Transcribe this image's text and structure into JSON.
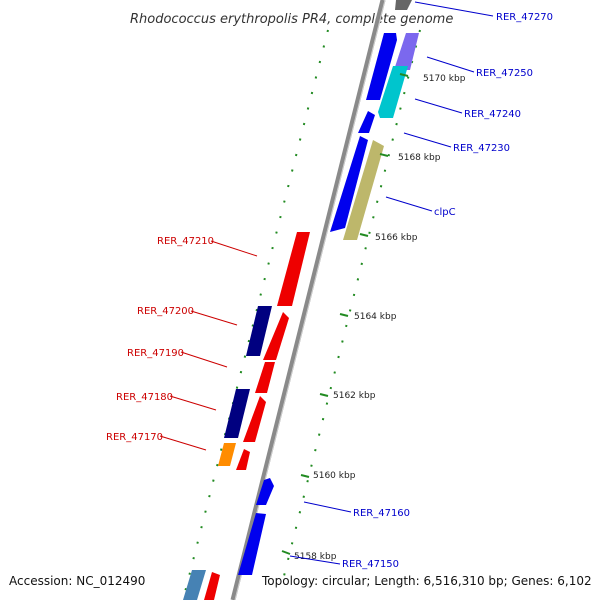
{
  "title": "Rhodococcus erythropolis PR4, complete genome",
  "footer": {
    "accession": "Accession: NC_012490",
    "summary": "Topology: circular; Length: 6,516,310 bp; Genes: 6,102"
  },
  "colors": {
    "backbone": "#888888",
    "forward_label": "#0000cc",
    "reverse_label": "#cc0000",
    "tick": "#228b22"
  },
  "kbp_ticks": [
    {
      "label": "5158 kbp"
    },
    {
      "label": "5160 kbp"
    },
    {
      "label": "5162 kbp"
    },
    {
      "label": "5164 kbp"
    },
    {
      "label": "5166 kbp"
    },
    {
      "label": "5168 kbp"
    },
    {
      "label": "5170 kbp"
    }
  ],
  "genes_forward": [
    {
      "label": "RER_47270",
      "color": "#0000ee"
    },
    {
      "label": "RER_47250",
      "color": "#0000ee"
    },
    {
      "label": "RER_47240",
      "color": "#0000ee"
    },
    {
      "label": "RER_47230",
      "color": "#0000ee"
    },
    {
      "label": "clpC",
      "color": "#0000ee"
    },
    {
      "label": "RER_47160",
      "color": "#0000ee"
    },
    {
      "label": "RER_47150",
      "color": "#0000ee"
    }
  ],
  "genes_reverse": [
    {
      "label": "RER_47210",
      "color": "#ee0000"
    },
    {
      "label": "RER_47200",
      "color": "#ee0000"
    },
    {
      "label": "RER_47190",
      "color": "#ee0000"
    },
    {
      "label": "RER_47180",
      "color": "#ee0000"
    },
    {
      "label": "RER_47170",
      "color": "#ee0000"
    }
  ]
}
